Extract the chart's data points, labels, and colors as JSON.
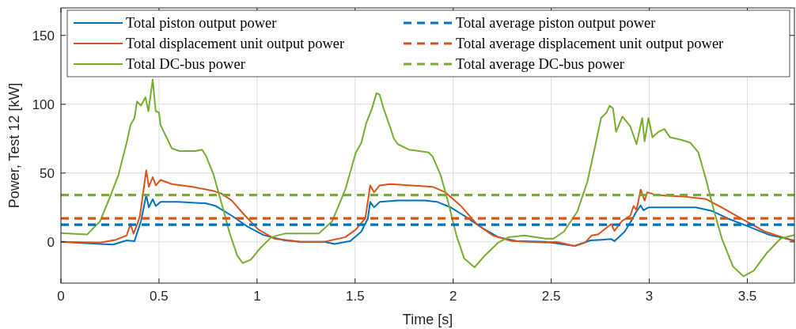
{
  "chart_data": {
    "type": "line",
    "xlabel": "Time [s]",
    "ylabel": "Power, Test 12 [kW]",
    "xlim": [
      0,
      3.74
    ],
    "xticks": [
      0,
      0.5,
      1,
      1.5,
      2,
      2.5,
      3,
      3.5
    ],
    "ylim": [
      -30,
      170
    ],
    "yticks": [
      0,
      50,
      100,
      150
    ],
    "grid": true,
    "legend": "top",
    "marker": "none",
    "series": [
      {
        "name": "Total piston output power",
        "color": "#0072bd",
        "line_style": "solid",
        "x": [
          0,
          0.2,
          0.266,
          0.335,
          0.375,
          0.408,
          0.435,
          0.448,
          0.468,
          0.484,
          0.508,
          0.6,
          0.738,
          0.79,
          0.871,
          0.952,
          1.032,
          1.141,
          1.222,
          1.343,
          1.395,
          1.476,
          1.532,
          1.565,
          1.577,
          1.597,
          1.625,
          1.718,
          1.855,
          1.919,
          1.988,
          2.056,
          2.149,
          2.23,
          2.323,
          2.472,
          2.62,
          2.7,
          2.806,
          2.822,
          2.875,
          2.915,
          2.93,
          2.956,
          2.97,
          2.996,
          3.105,
          3.238,
          3.319,
          3.4,
          3.508,
          3.613,
          3.74
        ],
        "values": [
          0,
          -1.5,
          -2,
          1,
          0.5,
          15,
          34,
          25,
          31,
          26,
          29,
          29,
          28,
          26,
          19,
          11,
          5,
          1,
          0,
          0,
          -1.5,
          0.6,
          7.5,
          17,
          29,
          25,
          29,
          30,
          30,
          29,
          25,
          19,
          10,
          3.4,
          0.6,
          0,
          -3,
          1,
          2,
          0.5,
          7.5,
          17,
          21,
          26.5,
          23,
          25,
          25,
          25,
          22.5,
          17,
          11,
          5,
          1
        ]
      },
      {
        "name": "Total displacement unit output power",
        "color": "#d95319",
        "line_style": "solid",
        "x": [
          0,
          0.2,
          0.28,
          0.335,
          0.355,
          0.37,
          0.39,
          0.403,
          0.435,
          0.448,
          0.468,
          0.484,
          0.508,
          0.565,
          0.67,
          0.778,
          0.819,
          0.871,
          0.939,
          1.006,
          1.089,
          1.222,
          1.343,
          1.45,
          1.504,
          1.552,
          1.577,
          1.597,
          1.625,
          1.677,
          1.786,
          1.895,
          1.96,
          2.04,
          2.12,
          2.202,
          2.298,
          2.472,
          2.525,
          2.62,
          2.673,
          2.706,
          2.74,
          2.806,
          2.822,
          2.86,
          2.903,
          2.92,
          2.935,
          2.956,
          2.976,
          2.99,
          3.036,
          3.17,
          3.29,
          3.37,
          3.48,
          3.589,
          3.74
        ],
        "values": [
          0,
          -0.5,
          1.5,
          4.6,
          13,
          6,
          13,
          19,
          52,
          40,
          47,
          41,
          45,
          42,
          40,
          37,
          35,
          30,
          19,
          9,
          2.3,
          0,
          0,
          3.4,
          9,
          17,
          41,
          36,
          41,
          42,
          41,
          40,
          36,
          26,
          13,
          4.6,
          0.6,
          -0.5,
          0,
          -3,
          -0.5,
          4.6,
          5.5,
          13,
          8,
          15,
          19,
          26,
          23,
          38,
          30,
          36,
          34,
          33,
          31,
          25,
          16,
          7.5,
          0.5
        ]
      },
      {
        "name": "Total DC-bus power",
        "color": "#77ac30",
        "line_style": "solid",
        "x": [
          0,
          0.133,
          0.2,
          0.254,
          0.294,
          0.335,
          0.355,
          0.375,
          0.388,
          0.408,
          0.431,
          0.446,
          0.468,
          0.483,
          0.5,
          0.508,
          0.565,
          0.605,
          0.685,
          0.72,
          0.738,
          0.778,
          0.819,
          0.859,
          0.899,
          0.927,
          0.968,
          1.02,
          1.073,
          1.141,
          1.222,
          1.315,
          1.383,
          1.45,
          1.504,
          1.532,
          1.556,
          1.585,
          1.609,
          1.625,
          1.645,
          1.677,
          1.698,
          1.718,
          1.774,
          1.827,
          1.875,
          1.895,
          1.935,
          1.976,
          2.016,
          2.056,
          2.109,
          2.161,
          2.23,
          2.282,
          2.363,
          2.472,
          2.512,
          2.565,
          2.633,
          2.685,
          2.72,
          2.754,
          2.782,
          2.798,
          2.815,
          2.831,
          2.863,
          2.903,
          2.935,
          2.964,
          2.976,
          2.996,
          3.016,
          3.048,
          3.077,
          3.105,
          3.165,
          3.21,
          3.25,
          3.29,
          3.331,
          3.371,
          3.427,
          3.48,
          3.532,
          3.6,
          3.669,
          3.74
        ],
        "values": [
          6.3,
          5.3,
          15,
          34,
          49,
          72,
          85,
          90,
          102,
          99,
          105,
          95,
          118,
          95,
          94,
          85,
          68,
          66,
          66,
          67,
          63,
          49,
          28,
          7,
          -10,
          -15.5,
          -13,
          -4,
          3.4,
          6,
          6,
          6,
          15,
          38,
          65,
          72,
          86,
          96.5,
          108,
          107,
          97,
          84,
          75,
          71,
          67,
          66,
          65,
          62,
          49,
          28,
          5,
          -12,
          -18.5,
          -10,
          -0.5,
          3.4,
          4.6,
          2.3,
          2.3,
          7.5,
          22,
          44,
          67,
          90,
          94,
          99,
          97,
          80,
          91,
          84,
          71,
          90,
          73,
          90,
          76,
          80,
          82,
          76,
          74,
          72,
          65,
          45,
          22,
          2,
          -18,
          -25,
          -21,
          -8,
          2.3,
          5
        ]
      },
      {
        "name": "Total average piston output power",
        "color": "#0072bd",
        "line_style": "dashed",
        "x": [
          0,
          3.74
        ],
        "values": [
          12.5,
          12.5
        ]
      },
      {
        "name": "Total average displacement unit output power",
        "color": "#d95319",
        "line_style": "dashed",
        "x": [
          0,
          3.74
        ],
        "values": [
          17,
          17
        ]
      },
      {
        "name": "Total average DC-bus power",
        "color": "#77ac30",
        "line_style": "dashed",
        "x": [
          0,
          3.74
        ],
        "values": [
          34,
          34
        ]
      }
    ]
  }
}
